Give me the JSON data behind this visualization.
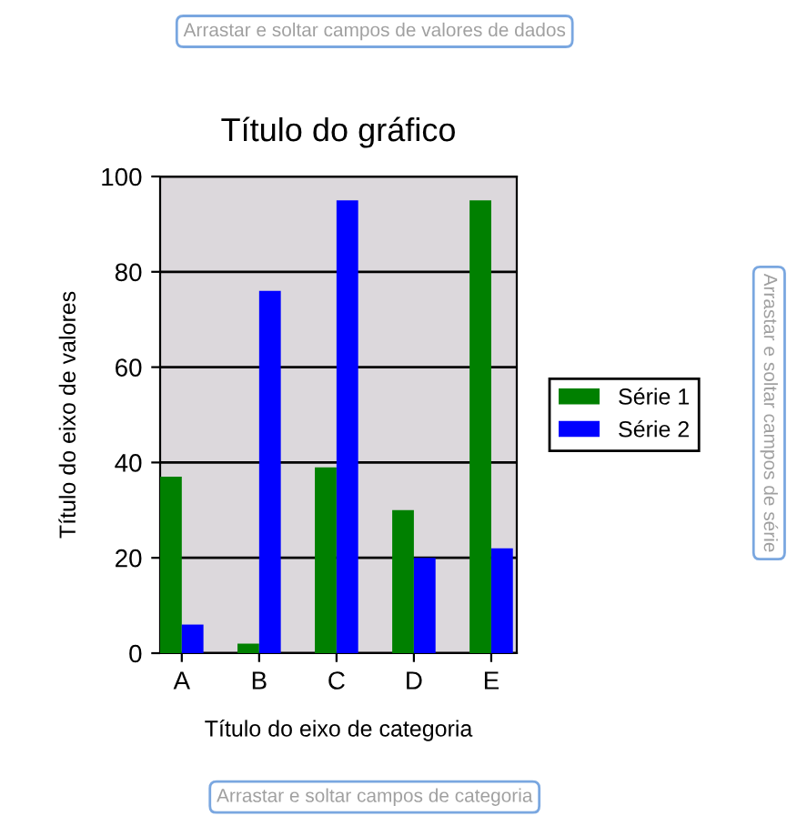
{
  "chart_data": {
    "type": "bar",
    "title": "Título do gráfico",
    "xlabel": "Título do eixo de categoria",
    "ylabel": "Título do eixo de valores",
    "categories": [
      "A",
      "B",
      "C",
      "D",
      "E"
    ],
    "series": [
      {
        "name": "Série 1",
        "color": "#008000",
        "values": [
          37,
          2,
          39,
          30,
          95
        ]
      },
      {
        "name": "Série 2",
        "color": "#0000ff",
        "values": [
          6,
          76,
          95,
          20,
          22
        ]
      }
    ],
    "ylim": [
      0,
      100
    ],
    "yticks": [
      0,
      20,
      40,
      60,
      80,
      100
    ],
    "grid": "y",
    "legend": "right",
    "annotations": [
      "Arrastar e soltar campos de valores de dados",
      "Arrastar e soltar campos de série",
      "Arrastar e soltar campos de categoria"
    ]
  }
}
